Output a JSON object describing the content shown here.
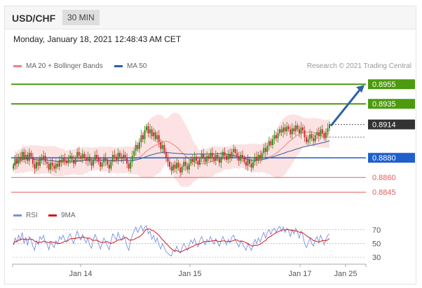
{
  "header": {
    "pair": "USD/CHF",
    "timeframe": "30 MIN"
  },
  "timestamp": "Monday, January 18, 2021 12:48:43 AM CET",
  "legend": {
    "ma_bb": "MA 20 + Bollinger Bands",
    "ma50": "MA 50",
    "rsi": "RSI",
    "ma9": "9MA",
    "copyright": "Research © 2021 Trading Central"
  },
  "colors": {
    "resistance": "#4c9a0e",
    "pivot": "#1f5fcc",
    "support": "#e85c5c",
    "last": "#333333",
    "bull": "#3a8a1e",
    "bear": "#c92f2f",
    "bands": "#fbd6d6",
    "ma20": "#f08080",
    "ma50": "#2a5ea8",
    "rsi": "#7b8fe0",
    "ma9": "#d81818"
  },
  "chart_data": [
    {
      "type": "candlestick",
      "ylim": [
        0.8838,
        0.8968
      ],
      "x_ticks": [
        "Jan 14",
        "Jan 15",
        "Jan 17",
        "Jan 25"
      ],
      "levels": [
        {
          "label": "0.8955",
          "value": 0.8955,
          "kind": "resistance"
        },
        {
          "label": "0.8935",
          "value": 0.8935,
          "kind": "resistance"
        },
        {
          "label": "0.8914",
          "value": 0.8914,
          "kind": "last"
        },
        {
          "label": "0.8880",
          "value": 0.888,
          "kind": "pivot"
        },
        {
          "label": "0.8860",
          "value": 0.886,
          "kind": "support"
        },
        {
          "label": "0.8845",
          "value": 0.8845,
          "kind": "support"
        }
      ],
      "close": [
        0.8872,
        0.8879,
        0.8874,
        0.8881,
        0.8878,
        0.8886,
        0.8879,
        0.8883,
        0.8877,
        0.8885,
        0.8881,
        0.8874,
        0.8869,
        0.8876,
        0.8872,
        0.888,
        0.8878,
        0.8882,
        0.8876,
        0.8874,
        0.8868,
        0.8875,
        0.8872,
        0.8869,
        0.8874,
        0.8871,
        0.8878,
        0.8876,
        0.888,
        0.8877,
        0.8875,
        0.8879,
        0.8882,
        0.8878,
        0.8874,
        0.888,
        0.8886,
        0.8882,
        0.8879,
        0.8884,
        0.888,
        0.8877,
        0.8881,
        0.8876,
        0.8872,
        0.8878,
        0.8883,
        0.888,
        0.8876,
        0.8871,
        0.8875,
        0.888,
        0.8877,
        0.8873,
        0.8869,
        0.8876,
        0.8883,
        0.8881,
        0.8878,
        0.8885,
        0.8881,
        0.8879,
        0.8883,
        0.888,
        0.8874,
        0.8869,
        0.8876,
        0.8882,
        0.8887,
        0.8893,
        0.8889,
        0.8896,
        0.8903,
        0.8899,
        0.8908,
        0.8912,
        0.8905,
        0.8909,
        0.8902,
        0.8906,
        0.8899,
        0.8903,
        0.8896,
        0.8889,
        0.8893,
        0.8886,
        0.888,
        0.8876,
        0.8871,
        0.8867,
        0.8873,
        0.8869,
        0.8875,
        0.887,
        0.8865,
        0.8871,
        0.8876,
        0.8872,
        0.8868,
        0.8874,
        0.8879,
        0.8876,
        0.8881,
        0.8877,
        0.8873,
        0.8879,
        0.8884,
        0.888,
        0.8876,
        0.8882,
        0.8879,
        0.8885,
        0.8881,
        0.8877,
        0.8883,
        0.8879,
        0.8875,
        0.8881,
        0.8886,
        0.8882,
        0.8878,
        0.8884,
        0.888,
        0.8886,
        0.8889,
        0.8885,
        0.8881,
        0.8877,
        0.8883,
        0.888,
        0.8876,
        0.8872,
        0.8878,
        0.8874,
        0.887,
        0.8876,
        0.8881,
        0.8877,
        0.8883,
        0.8879,
        0.8885,
        0.889,
        0.8886,
        0.8892,
        0.8897,
        0.8893,
        0.8899,
        0.8903,
        0.89,
        0.8905,
        0.8909,
        0.8906,
        0.8911,
        0.8907,
        0.8912,
        0.8909,
        0.8904,
        0.891,
        0.8907,
        0.8913,
        0.8909,
        0.8905,
        0.8911,
        0.8908,
        0.8901,
        0.8896,
        0.8899,
        0.8904,
        0.89,
        0.8897,
        0.8903,
        0.8906,
        0.8902,
        0.8909,
        0.8905,
        0.89,
        0.8906,
        0.891,
        0.8914
      ]
    },
    {
      "type": "line",
      "ylim": [
        25,
        80
      ],
      "y_ticks": [
        70,
        50,
        30
      ],
      "series": [
        {
          "name": "RSI",
          "values": [
            48,
            58,
            52,
            62,
            55,
            66,
            50,
            59,
            47,
            60,
            55,
            46,
            40,
            54,
            48,
            60,
            56,
            62,
            52,
            49,
            41,
            52,
            48,
            44,
            54,
            49,
            60,
            56,
            62,
            55,
            52,
            59,
            64,
            56,
            50,
            60,
            68,
            60,
            55,
            63,
            56,
            51,
            58,
            48,
            43,
            55,
            63,
            57,
            50,
            42,
            50,
            58,
            53,
            46,
            41,
            54,
            64,
            60,
            55,
            66,
            58,
            55,
            62,
            56,
            46,
            40,
            54,
            62,
            68,
            74,
            66,
            72,
            76,
            68,
            74,
            76,
            64,
            68,
            56,
            62,
            52,
            58,
            48,
            42,
            50,
            44,
            38,
            36,
            33,
            32,
            40,
            38,
            46,
            40,
            36,
            44,
            50,
            45,
            40,
            48,
            55,
            50,
            57,
            50,
            45,
            54,
            60,
            54,
            48,
            56,
            52,
            60,
            54,
            49,
            57,
            51,
            46,
            54,
            60,
            54,
            48,
            56,
            51,
            59,
            62,
            55,
            50,
            45,
            54,
            50,
            45,
            40,
            50,
            45,
            40,
            48,
            56,
            50,
            58,
            52,
            60,
            66,
            58,
            66,
            70,
            63,
            70,
            72,
            66,
            72,
            75,
            68,
            74,
            66,
            72,
            68,
            60,
            70,
            64,
            72,
            66,
            58,
            68,
            62,
            50,
            44,
            50,
            58,
            50,
            46,
            55,
            60,
            52,
            62,
            56,
            48,
            56,
            62,
            64
          ]
        }
      ]
    }
  ]
}
